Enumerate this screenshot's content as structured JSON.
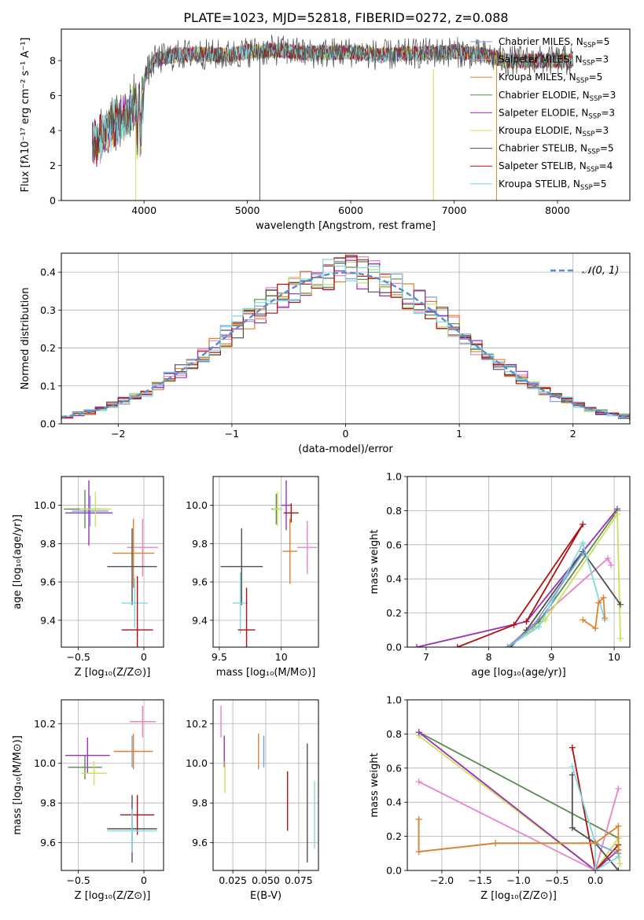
{
  "figure": {
    "title": "PLATE=1023, MJD=52818, FIBERID=0272, z=0.088"
  },
  "series_styles": [
    {
      "name": "Chabrier MILES",
      "legend": "Chabrier MILES, N",
      "sub": "SSP",
      "n": "5",
      "color": "#7b9fd8"
    },
    {
      "name": "Salpeter MILES",
      "legend": "Salpeter MILES, N",
      "sub": "SSP",
      "n": "3",
      "color": "#e884c4"
    },
    {
      "name": "Kroupa MILES",
      "legend": "Kroupa MILES, N",
      "sub": "SSP",
      "n": "5",
      "color": "#e0822c"
    },
    {
      "name": "Chabrier ELODIE",
      "legend": "Chabrier ELODIE, N",
      "sub": "SSP",
      "n": "3",
      "color": "#5a8a52"
    },
    {
      "name": "Salpeter ELODIE",
      "legend": "Salpeter ELODIE, N",
      "sub": "SSP",
      "n": "3",
      "color": "#9b2fb5"
    },
    {
      "name": "Kroupa ELODIE",
      "legend": "Kroupa ELODIE, N",
      "sub": "SSP",
      "n": "3",
      "color": "#c8e05a"
    },
    {
      "name": "Chabrier STELIB",
      "legend": "Chabrier STELIB, N",
      "sub": "SSP",
      "n": "5",
      "color": "#505050"
    },
    {
      "name": "Salpeter STELIB",
      "legend": "Salpeter STELIB, N",
      "sub": "SSP",
      "n": "4",
      "color": "#b01010"
    },
    {
      "name": "Kroupa STELIB",
      "legend": "Kroupa STELIB, N",
      "sub": "SSP",
      "n": "5",
      "color": "#7ed8e0"
    }
  ],
  "chart_data": [
    {
      "id": "spectrum",
      "type": "line",
      "xlabel": "wavelength [Angstrom, rest frame]",
      "ylabel": "Flux [fλ10⁻¹⁷ erg cm⁻² s⁻¹ A⁻¹]",
      "xlim": [
        3200,
        8700
      ],
      "ylim": [
        0,
        9.8
      ],
      "xticks": [
        4000,
        5000,
        6000,
        7000,
        8000
      ],
      "yticks": [
        0,
        2,
        4,
        6,
        8
      ],
      "grid": false,
      "legend": "right",
      "flux_profile": {
        "x": [
          3500,
          3600,
          3700,
          3800,
          3900,
          4000,
          4100,
          4300,
          4500,
          4800,
          5000,
          5300,
          5600,
          6000,
          6300,
          6600,
          7000,
          7300,
          7500
        ],
        "y": [
          4.2,
          4.8,
          5.4,
          5.8,
          6.5,
          7.0,
          8.0,
          8.3,
          8.4,
          8.3,
          8.5,
          8.6,
          8.4,
          8.5,
          8.3,
          8.4,
          8.5,
          8.3,
          8.0
        ]
      },
      "note_lines": [
        {
          "series": "Kroupa ELODIE",
          "x": 3920,
          "ymin": 0,
          "ymax": 4.5
        },
        {
          "series": "Chabrier STELIB",
          "x": 5120,
          "ymin": 0,
          "ymax": 8.4
        },
        {
          "series": "Kroupa ELODIE",
          "x": 6800,
          "ymin": 0,
          "ymax": 7.5
        },
        {
          "series": "Kroupa MILES",
          "x": 7410,
          "ymin": 0,
          "ymax": 8.5
        }
      ]
    },
    {
      "id": "residuals",
      "type": "line",
      "xlabel": "(data-model)/error",
      "ylabel": "Normed distribution",
      "xlim": [
        -2.5,
        2.5
      ],
      "ylim": [
        0,
        0.45
      ],
      "xticks": [
        -2,
        -1,
        0,
        1,
        2
      ],
      "yticks": [
        0.0,
        0.1,
        0.2,
        0.3,
        0.4
      ],
      "grid": true,
      "legend": "top-right",
      "legend_label": "𝒩(0, 1)",
      "curve_color": "#5b8bd0"
    },
    {
      "id": "age_vs_Z",
      "type": "scatter",
      "xlabel": "Z [log₁₀(Z/Z⊙)]",
      "ylabel": "age  [log₁₀(age/yr)]",
      "xlim": [
        -0.63,
        0.15
      ],
      "ylim": [
        9.26,
        10.15
      ],
      "xticks": [
        -0.5,
        0.0
      ],
      "yticks": [
        9.4,
        9.6,
        9.8,
        10.0
      ],
      "grid": true,
      "points": [
        {
          "series": "Chabrier MILES",
          "x": -0.41,
          "y": 9.97,
          "xerr": 0.14,
          "yerr": 0.08
        },
        {
          "series": "Chabrier ELODIE",
          "x": -0.45,
          "y": 9.98,
          "xerr": 0.16,
          "yerr": 0.1
        },
        {
          "series": "Salpeter ELODIE",
          "x": -0.42,
          "y": 9.96,
          "xerr": 0.18,
          "yerr": 0.17
        },
        {
          "series": "Kroupa ELODIE",
          "x": -0.37,
          "y": 9.98,
          "xerr": 0.12,
          "yerr": 0.09
        },
        {
          "series": "Salpeter MILES",
          "x": -0.01,
          "y": 9.78,
          "xerr": 0.12,
          "yerr": 0.15
        },
        {
          "series": "Kroupa MILES",
          "x": -0.08,
          "y": 9.75,
          "xerr": 0.16,
          "yerr": 0.18
        },
        {
          "series": "Chabrier STELIB",
          "x": -0.09,
          "y": 9.68,
          "xerr": 0.19,
          "yerr": 0.2
        },
        {
          "series": "Kroupa STELIB",
          "x": -0.07,
          "y": 9.49,
          "xerr": 0.1,
          "yerr": 0.13
        },
        {
          "series": "Salpeter STELIB",
          "x": -0.05,
          "y": 9.35,
          "xerr": 0.12,
          "yerr": 0.28
        }
      ]
    },
    {
      "id": "age_vs_mass",
      "type": "scatter",
      "xlabel": "mass [log₁₀(M/M⊙)]",
      "ylabel": "",
      "xlim": [
        9.45,
        10.3
      ],
      "ylim": [
        9.26,
        10.15
      ],
      "xticks": [
        9.5,
        10.0
      ],
      "yticks": [
        9.4,
        9.6,
        9.8,
        10.0
      ],
      "grid": true,
      "points": [
        {
          "series": "Chabrier ELODIE",
          "x": 9.96,
          "y": 9.98,
          "xerr": 0.04,
          "yerr": 0.08
        },
        {
          "series": "Kroupa ELODIE",
          "x": 9.97,
          "y": 9.98,
          "xerr": 0.04,
          "yerr": 0.09
        },
        {
          "series": "Salpeter ELODIE",
          "x": 10.04,
          "y": 10.0,
          "xerr": 0.04,
          "yerr": 0.13
        },
        {
          "series": "Salpeter MILES",
          "x": 10.21,
          "y": 9.78,
          "xerr": 0.08,
          "yerr": 0.14
        },
        {
          "series": "Kroupa MILES",
          "x": 10.07,
          "y": 9.76,
          "xerr": 0.06,
          "yerr": 0.17
        },
        {
          "series": "Salpeter STELIB",
          "x": 10.08,
          "y": 9.96,
          "xerr": 0.06,
          "yerr": 0.05
        },
        {
          "series": "Chabrier STELIB",
          "x": 9.68,
          "y": 9.68,
          "xerr": 0.17,
          "yerr": 0.2
        },
        {
          "series": "Kroupa STELIB",
          "x": 9.67,
          "y": 9.49,
          "xerr": 0.06,
          "yerr": 0.16
        },
        {
          "series": "Salpeter STELIB",
          "x": 9.72,
          "y": 9.35,
          "xerr": 0.07,
          "yerr": 0.22
        }
      ]
    },
    {
      "id": "weight_vs_age",
      "type": "line",
      "xlabel": "age  [log₁₀(age/yr)]",
      "ylabel": "mass weight",
      "xlim": [
        6.7,
        10.25
      ],
      "ylim": [
        0.0,
        1.0
      ],
      "xticks": [
        7,
        8,
        9,
        10
      ],
      "yticks": [
        0.0,
        0.2,
        0.4,
        0.6,
        0.8,
        1.0
      ],
      "grid": true,
      "series": [
        {
          "name": "Salpeter ELODIE",
          "x": [
            6.85,
            8.6,
            10.05
          ],
          "y": [
            0.0,
            0.15,
            0.81
          ]
        },
        {
          "name": "Salpeter STELIB",
          "x": [
            7.5,
            8.4,
            9.5,
            8.6
          ],
          "y": [
            0.0,
            0.13,
            0.72,
            0.15
          ]
        },
        {
          "name": "Salpeter MILES",
          "x": [
            8.3,
            9.9,
            9.95
          ],
          "y": [
            0.0,
            0.52,
            0.48
          ]
        },
        {
          "name": "Chabrier ELODIE",
          "x": [
            8.3,
            8.8,
            10.05
          ],
          "y": [
            0.0,
            0.15,
            0.8
          ]
        },
        {
          "name": "Kroupa ELODIE",
          "x": [
            8.3,
            8.9,
            10.05,
            10.1
          ],
          "y": [
            0.0,
            0.16,
            0.78,
            0.05
          ]
        },
        {
          "name": "Chabrier STELIB",
          "x": [
            8.35,
            8.6,
            9.5,
            10.1
          ],
          "y": [
            0.0,
            0.1,
            0.56,
            0.25
          ]
        },
        {
          "name": "Kroupa STELIB",
          "x": [
            8.3,
            8.8,
            9.5,
            9.85
          ],
          "y": [
            0.0,
            0.12,
            0.61,
            0.16
          ]
        },
        {
          "name": "Chabrier MILES",
          "x": [
            8.3,
            8.7,
            9.5
          ],
          "y": [
            0.0,
            0.12,
            0.55
          ]
        },
        {
          "name": "Kroupa MILES",
          "x": [
            9.5,
            9.7,
            9.75,
            9.83,
            9.85
          ],
          "y": [
            0.16,
            0.11,
            0.26,
            0.29,
            0.17
          ]
        }
      ]
    },
    {
      "id": "mass_vs_Z",
      "type": "scatter",
      "xlabel": "Z [log₁₀(Z/Z⊙)]",
      "ylabel": "mass [log₁₀(M/M⊙)]",
      "xlim": [
        -0.63,
        0.15
      ],
      "ylim": [
        9.46,
        10.32
      ],
      "xticks": [
        -0.5,
        0.0
      ],
      "yticks": [
        9.6,
        9.8,
        10.0,
        10.2
      ],
      "grid": true,
      "points": [
        {
          "series": "Salpeter MILES",
          "x": -0.01,
          "y": 10.21,
          "xerr": 0.1,
          "yerr": 0.08
        },
        {
          "series": "Salpeter ELODIE",
          "x": -0.43,
          "y": 10.04,
          "xerr": 0.17,
          "yerr": 0.09
        },
        {
          "series": "Chabrier MILES",
          "x": -0.09,
          "y": 10.06,
          "xerr": 0.14,
          "yerr": 0.08
        },
        {
          "series": "Kroupa MILES",
          "x": -0.08,
          "y": 10.06,
          "xerr": 0.15,
          "yerr": 0.09
        },
        {
          "series": "Chabrier ELODIE",
          "x": -0.45,
          "y": 9.98,
          "xerr": 0.13,
          "yerr": 0.06
        },
        {
          "series": "Kroupa ELODIE",
          "x": -0.38,
          "y": 9.95,
          "xerr": 0.1,
          "yerr": 0.06
        },
        {
          "series": "Salpeter STELIB",
          "x": -0.05,
          "y": 9.74,
          "xerr": 0.13,
          "yerr": 0.1
        },
        {
          "series": "Chabrier STELIB",
          "x": -0.09,
          "y": 9.67,
          "xerr": 0.19,
          "yerr": 0.17
        },
        {
          "series": "Kroupa STELIB",
          "x": -0.09,
          "y": 9.66,
          "xerr": 0.19,
          "yerr": 0.11
        }
      ]
    },
    {
      "id": "mass_vs_ebv",
      "type": "scatter",
      "xlabel": "E(B-V)",
      "ylabel": "",
      "xlim": [
        0.01,
        0.09
      ],
      "ylim": [
        9.46,
        10.32
      ],
      "xticks": [
        0.025,
        0.05,
        0.075
      ],
      "xtick_labels": [
        "0.025",
        "0.050",
        "0.075"
      ],
      "yticks": [
        9.6,
        9.8,
        10.0,
        10.2
      ],
      "grid": true,
      "points": [
        {
          "series": "Salpeter MILES",
          "x": 0.016,
          "y": 10.21,
          "xerr": 0,
          "yerr": 0.08
        },
        {
          "series": "Salpeter ELODIE",
          "x": 0.0185,
          "y": 10.06,
          "xerr": 0,
          "yerr": 0.08
        },
        {
          "series": "Kroupa ELODIE",
          "x": 0.019,
          "y": 9.93,
          "xerr": 0,
          "yerr": 0.08
        },
        {
          "series": "Kroupa MILES",
          "x": 0.0445,
          "y": 10.06,
          "xerr": 0,
          "yerr": 0.09
        },
        {
          "series": "Chabrier MILES",
          "x": 0.0485,
          "y": 10.06,
          "xerr": 0,
          "yerr": 0.08
        },
        {
          "series": "Salpeter STELIB",
          "x": 0.0665,
          "y": 9.81,
          "xerr": 0,
          "yerr": 0.15
        },
        {
          "series": "Chabrier STELIB",
          "x": 0.0815,
          "y": 9.8,
          "xerr": 0,
          "yerr": 0.3
        },
        {
          "series": "Kroupa STELIB",
          "x": 0.087,
          "y": 9.74,
          "xerr": 0,
          "yerr": 0.17
        }
      ]
    },
    {
      "id": "weight_vs_Z",
      "type": "line",
      "xlabel": "Z [log₁₀(Z/Z⊙)]",
      "ylabel": "mass weight",
      "xlim": [
        -2.45,
        0.45
      ],
      "ylim": [
        0.0,
        1.0
      ],
      "xticks": [
        -2.0,
        -1.5,
        -1.0,
        -0.5,
        0.0
      ],
      "xtick_labels": [
        "−2.0",
        "−1.5",
        "−1.0",
        "−0.5",
        "0.0"
      ],
      "yticks": [
        0.0,
        0.2,
        0.4,
        0.6,
        0.8,
        1.0
      ],
      "grid": true,
      "series": [
        {
          "name": "Chabrier ELODIE",
          "x": [
            -2.3,
            0.3
          ],
          "y": [
            0.81,
            0.19
          ]
        },
        {
          "name": "Kroupa ELODIE",
          "x": [
            -2.3,
            0.0,
            0.3,
            0.32
          ],
          "y": [
            0.79,
            0.0,
            0.19,
            0.04
          ]
        },
        {
          "name": "Salpeter ELODIE",
          "x": [
            -2.3,
            0.0,
            0.3
          ],
          "y": [
            0.81,
            0.0,
            0.12
          ]
        },
        {
          "name": "Salpeter MILES",
          "x": [
            -2.3,
            0.0,
            0.3
          ],
          "y": [
            0.52,
            0.0,
            0.48
          ]
        },
        {
          "name": "Salpeter STELIB",
          "x": [
            -0.3,
            0.0,
            0.3
          ],
          "y": [
            0.72,
            0.0,
            0.15
          ]
        },
        {
          "name": "Chabrier STELIB",
          "x": [
            -0.3,
            -0.3,
            0.0,
            0.3
          ],
          "y": [
            0.56,
            0.25,
            0.16,
            0.0
          ]
        },
        {
          "name": "Kroupa STELIB",
          "x": [
            -0.3,
            0.0,
            0.0,
            0.3
          ],
          "y": [
            0.61,
            0.16,
            0.0,
            0.08
          ]
        },
        {
          "name": "Chabrier MILES",
          "x": [
            -2.3,
            -2.3,
            -1.3,
            0.0,
            0.3
          ],
          "y": [
            0.3,
            0.11,
            0.16,
            0.16,
            0.1
          ]
        },
        {
          "name": "Kroupa MILES",
          "x": [
            -2.3,
            -2.3,
            -1.3,
            0.0,
            0.3,
            0.3
          ],
          "y": [
            0.3,
            0.11,
            0.16,
            0.16,
            0.26,
            0.12
          ]
        }
      ]
    }
  ]
}
